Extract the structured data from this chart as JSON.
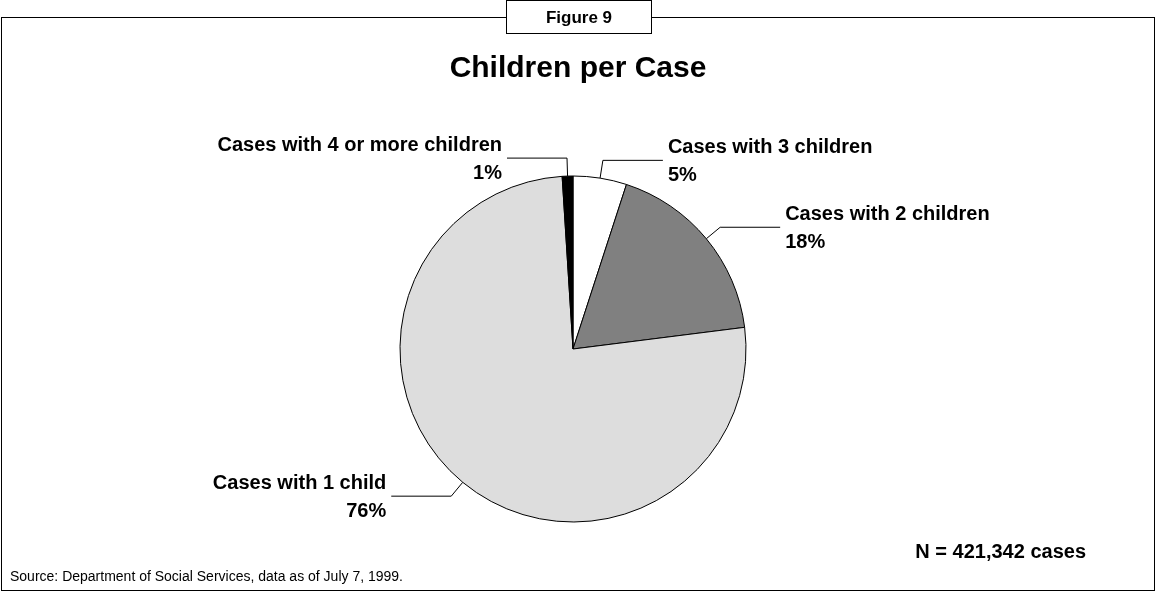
{
  "chart_data": {
    "type": "pie",
    "title": "Children per Case",
    "categories": [
      "Cases with 3 children",
      "Cases with 2 children",
      "Cases with 1 child",
      "Cases with 4 or more children"
    ],
    "values": [
      5,
      18,
      76,
      1
    ],
    "colors": [
      "#ffffff",
      "#808080",
      "#dddddd",
      "#000000"
    ],
    "value_labels": [
      "5%",
      "18%",
      "76%",
      "1%"
    ],
    "legend": false,
    "annotations": [
      "Figure 9",
      "N = 421,342 cases",
      "Source:  Department of Social Services, data as of July 7, 1999."
    ]
  }
}
